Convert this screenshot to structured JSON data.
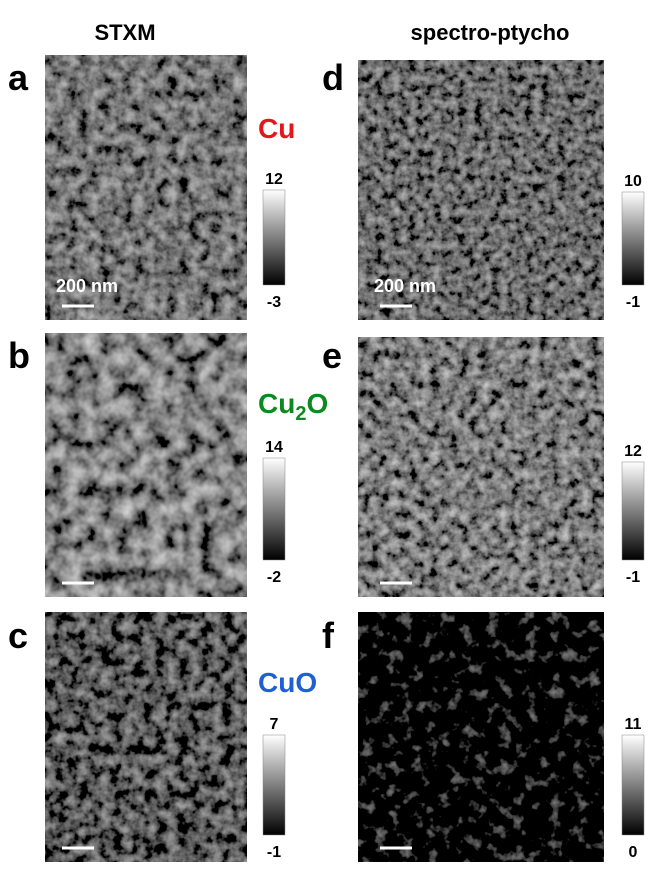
{
  "columns": [
    "STXM",
    "spectro-ptycho"
  ],
  "elements": [
    {
      "base": "Cu",
      "color": "#e8141b"
    },
    {
      "base": "Cu",
      "sub": "2",
      "rest": "O",
      "color": "#0d8a1e"
    },
    {
      "base": "CuO",
      "color": "#1f5fd6"
    }
  ],
  "panels": [
    {
      "letter": "a",
      "max": 12,
      "min": -3,
      "scale_bar": "200 nm"
    },
    {
      "letter": "b",
      "max": 14,
      "min": -2
    },
    {
      "letter": "c",
      "max": 7,
      "min": -1
    },
    {
      "letter": "d",
      "max": 10,
      "min": -1,
      "scale_bar": "200 nm"
    },
    {
      "letter": "e",
      "max": 12,
      "min": -1
    },
    {
      "letter": "f",
      "max": 11,
      "min": 0
    }
  ]
}
